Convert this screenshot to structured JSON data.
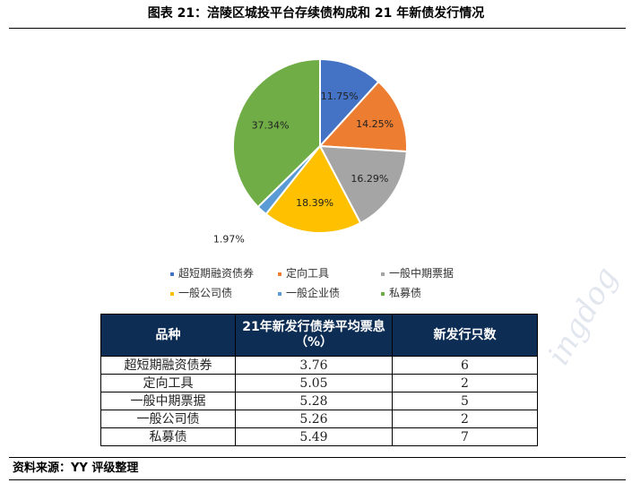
{
  "title": "图表 21：涪陵区城投平台存续债构成和 21 年新债发行情况",
  "chart_data": {
    "type": "pie",
    "categories": [
      "超短期融资债券",
      "定向工具",
      "一般中期票据",
      "一般公司债",
      "一般企业债",
      "私募债"
    ],
    "values": [
      11.75,
      14.25,
      16.29,
      18.39,
      1.97,
      37.34
    ],
    "labels": [
      "11.75%",
      "14.25%",
      "16.29%",
      "18.39%",
      "1.97%",
      "37.34%"
    ],
    "colors": [
      "#4472c4",
      "#ed7d31",
      "#a5a5a5",
      "#ffc000",
      "#5b9bd5",
      "#70ad47"
    ],
    "legend_position": "bottom"
  },
  "table": {
    "headers": [
      "品种",
      "21年新发行债券平均票息（%）",
      "新发行只数"
    ],
    "rows": [
      [
        "超短期融资债券",
        "3.76",
        "6"
      ],
      [
        "定向工具",
        "5.05",
        "2"
      ],
      [
        "一般中期票据",
        "5.28",
        "5"
      ],
      [
        "一般公司债",
        "5.26",
        "2"
      ],
      [
        "私募债",
        "5.49",
        "7"
      ]
    ]
  },
  "source": "资料来源：YY 评级整理",
  "watermark": "ingdog"
}
